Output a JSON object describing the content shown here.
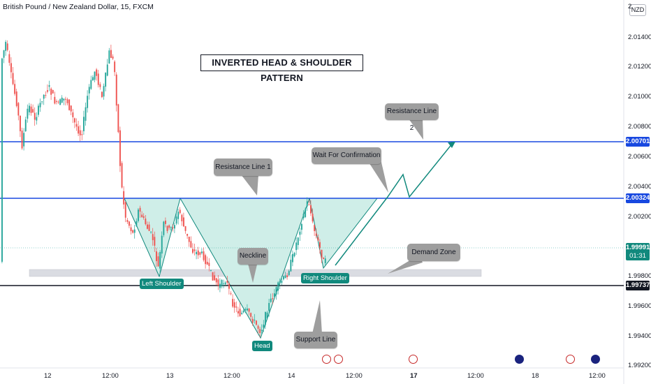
{
  "header": {
    "ticker": "British Pound / New Zealand Dollar, 15, FXCM"
  },
  "currency_badge": "NZD",
  "annotations": {
    "title": "INVERTED HEAD & SHOULDER PATTERN",
    "resistance_line_1": "Resistance Line 1",
    "resistance_line_2": "Resistance Line 2",
    "wait_for_confirmation": "Wait For Confirmation",
    "neckline": "Neckline",
    "demand_zone": "Demand Zone",
    "support_line": "Support Line",
    "left_shoulder": "Left Shoulder",
    "head": "Head",
    "right_shoulder": "Right Shoulder"
  },
  "price_tags": {
    "resistance_2": "2.00701",
    "resistance_1": "2.00324",
    "current": "1.99991",
    "countdown": "01:31",
    "support": "1.99737"
  },
  "colors": {
    "up": "#26a69a",
    "down": "#ef5350",
    "line_blue": "#1848e0",
    "teal": "#11897d",
    "pattern_fill": "#cfeee8",
    "callout": "#9e9e9e"
  },
  "chart_data": {
    "type": "candlestick",
    "symbol": "GBPNZD",
    "timeframe": "15",
    "source": "FXCM",
    "y_axis": {
      "ticks": [
        "2.01400",
        "2.01200",
        "2.01000",
        "2.00800",
        "2.00600",
        "2.00400",
        "2.00200",
        "1.99800",
        "1.99600",
        "1.99400"
      ],
      "top_tick": "2.",
      "bottom_tick": "1.99200"
    },
    "x_axis": {
      "ticks": [
        "12",
        "12:00",
        "13",
        "12:00",
        "14",
        "12:00",
        "17",
        "12:00",
        "18",
        "12:00"
      ]
    },
    "horizontal_lines": [
      {
        "name": "resistance-line-2",
        "price": 2.00701
      },
      {
        "name": "resistance-line-1",
        "price": 2.00324
      },
      {
        "name": "support-line",
        "price": 1.99737
      }
    ],
    "demand_zone": {
      "from": 1.9978,
      "to": 1.9983
    },
    "pattern_points": [
      {
        "label": "Left Shoulder",
        "price": 1.998
      },
      {
        "label": "Head",
        "price": 1.9953
      },
      {
        "label": "Right Shoulder",
        "price": 1.9985
      }
    ],
    "last_price": 1.99991
  }
}
